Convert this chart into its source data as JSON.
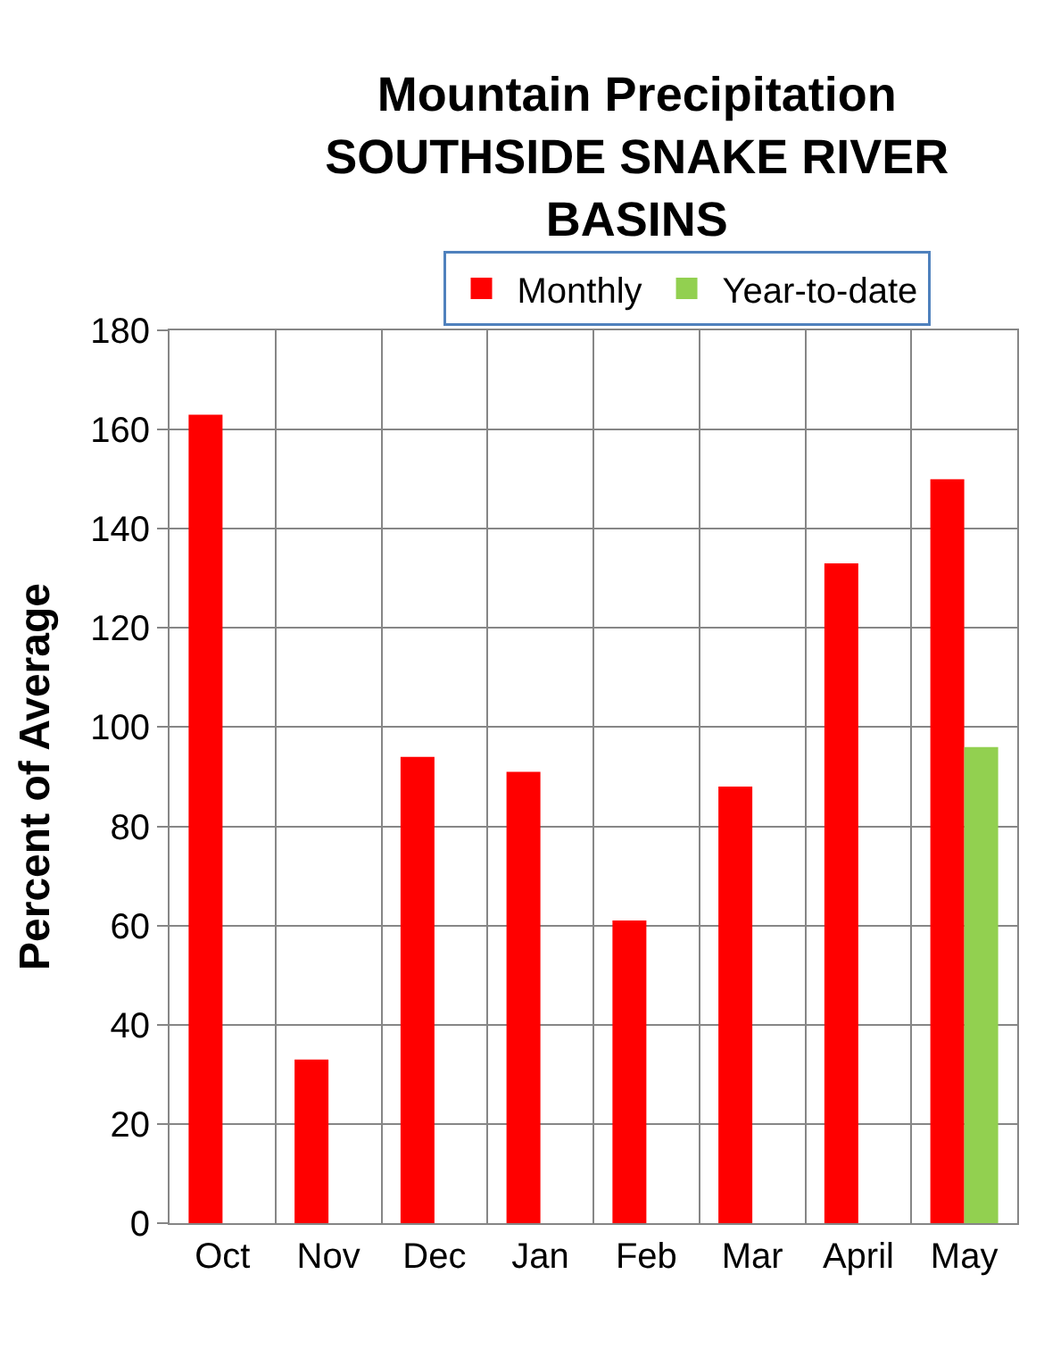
{
  "chart_data": {
    "type": "bar",
    "title": "Mountain Precipitation\nSOUTHSIDE SNAKE RIVER\nBASINS",
    "ylabel": "Percent of Average",
    "categories": [
      "Oct",
      "Nov",
      "Dec",
      "Jan",
      "Feb",
      "Mar",
      "April",
      "May"
    ],
    "series": [
      {
        "name": "Monthly",
        "color": "#ff0000",
        "values": [
          163,
          33,
          94,
          91,
          61,
          88,
          133,
          150
        ]
      },
      {
        "name": "Year-to-date",
        "color": "#92d050",
        "values": [
          null,
          null,
          null,
          null,
          null,
          null,
          null,
          96
        ]
      }
    ],
    "ylim": [
      0,
      180
    ],
    "yticks": [
      0,
      20,
      40,
      60,
      80,
      100,
      120,
      140,
      160,
      180
    ],
    "grid": true,
    "legend": "top"
  }
}
